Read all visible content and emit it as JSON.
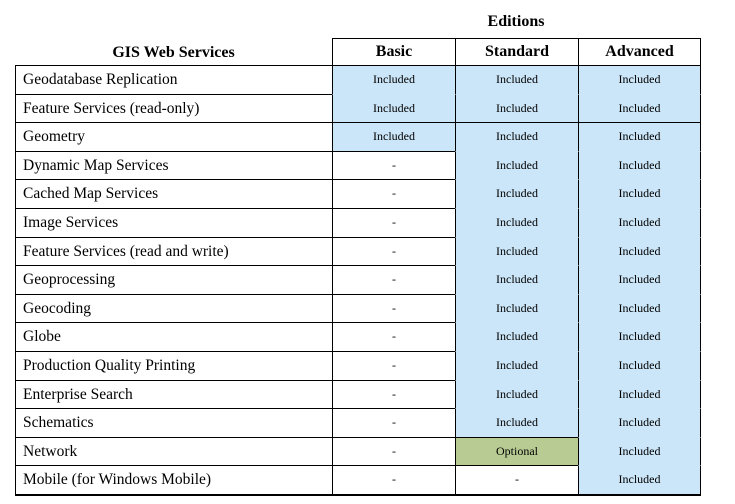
{
  "colors": {
    "included": "#cbe6f8",
    "optional": "#b7cb93",
    "none": "#ffffff",
    "border": "#000000",
    "text": "#000000"
  },
  "header": {
    "editions_label": "Editions",
    "services_label": "GIS Web Services",
    "columns": [
      "Basic",
      "Standard",
      "Advanced"
    ]
  },
  "rows": [
    {
      "service": "Geodatabase Replication",
      "cells": [
        {
          "text": "Included",
          "bg": "included",
          "divider": false
        },
        {
          "text": "Included",
          "bg": "included",
          "divider": false
        },
        {
          "text": "Included",
          "bg": "included",
          "divider": false
        }
      ]
    },
    {
      "service": "Feature Services (read-only)",
      "cells": [
        {
          "text": "Included",
          "bg": "included",
          "divider": true
        },
        {
          "text": "Included",
          "bg": "included",
          "divider": true
        },
        {
          "text": "Included",
          "bg": "included",
          "divider": true
        }
      ]
    },
    {
      "service": "Geometry",
      "cells": [
        {
          "text": "Included",
          "bg": "included",
          "divider": true
        },
        {
          "text": "Included",
          "bg": "included",
          "divider": false
        },
        {
          "text": "Included",
          "bg": "included",
          "divider": false
        }
      ]
    },
    {
      "service": "Dynamic Map Services",
      "cells": [
        {
          "text": "-",
          "bg": "none",
          "divider": true
        },
        {
          "text": "Included",
          "bg": "included",
          "divider": false
        },
        {
          "text": "Included",
          "bg": "included",
          "divider": false
        }
      ]
    },
    {
      "service": "Cached Map Services",
      "cells": [
        {
          "text": "-",
          "bg": "none",
          "divider": true
        },
        {
          "text": "Included",
          "bg": "included",
          "divider": false
        },
        {
          "text": "Included",
          "bg": "included",
          "divider": false
        }
      ]
    },
    {
      "service": "Image Services",
      "cells": [
        {
          "text": "-",
          "bg": "none",
          "divider": true
        },
        {
          "text": "Included",
          "bg": "included",
          "divider": false
        },
        {
          "text": "Included",
          "bg": "included",
          "divider": false
        }
      ]
    },
    {
      "service": "Feature Services (read and write)",
      "cells": [
        {
          "text": "-",
          "bg": "none",
          "divider": true
        },
        {
          "text": "Included",
          "bg": "included",
          "divider": false
        },
        {
          "text": "Included",
          "bg": "included",
          "divider": false
        }
      ]
    },
    {
      "service": "Geoprocessing",
      "cells": [
        {
          "text": "-",
          "bg": "none",
          "divider": true
        },
        {
          "text": "Included",
          "bg": "included",
          "divider": false
        },
        {
          "text": "Included",
          "bg": "included",
          "divider": false
        }
      ]
    },
    {
      "service": "Geocoding",
      "cells": [
        {
          "text": "-",
          "bg": "none",
          "divider": true
        },
        {
          "text": "Included",
          "bg": "included",
          "divider": false
        },
        {
          "text": "Included",
          "bg": "included",
          "divider": false
        }
      ]
    },
    {
      "service": "Globe",
      "cells": [
        {
          "text": "-",
          "bg": "none",
          "divider": true
        },
        {
          "text": "Included",
          "bg": "included",
          "divider": false
        },
        {
          "text": "Included",
          "bg": "included",
          "divider": false
        }
      ]
    },
    {
      "service": "Production Quality Printing",
      "cells": [
        {
          "text": "-",
          "bg": "none",
          "divider": true
        },
        {
          "text": "Included",
          "bg": "included",
          "divider": false
        },
        {
          "text": "Included",
          "bg": "included",
          "divider": false
        }
      ]
    },
    {
      "service": "Enterprise Search",
      "cells": [
        {
          "text": "-",
          "bg": "none",
          "divider": true
        },
        {
          "text": "Included",
          "bg": "included",
          "divider": false
        },
        {
          "text": "Included",
          "bg": "included",
          "divider": false
        }
      ]
    },
    {
      "service": "Schematics",
      "cells": [
        {
          "text": "-",
          "bg": "none",
          "divider": true
        },
        {
          "text": "Included",
          "bg": "included",
          "divider": true
        },
        {
          "text": "Included",
          "bg": "included",
          "divider": false
        }
      ]
    },
    {
      "service": "Network",
      "cells": [
        {
          "text": "-",
          "bg": "none",
          "divider": true
        },
        {
          "text": "Optional",
          "bg": "optional",
          "divider": true
        },
        {
          "text": "Included",
          "bg": "included",
          "divider": false
        }
      ]
    },
    {
      "service": "Mobile (for Windows Mobile)",
      "cells": [
        {
          "text": "-",
          "bg": "none",
          "divider": true
        },
        {
          "text": "-",
          "bg": "none",
          "divider": true
        },
        {
          "text": "Included",
          "bg": "included",
          "divider": true
        }
      ]
    }
  ]
}
